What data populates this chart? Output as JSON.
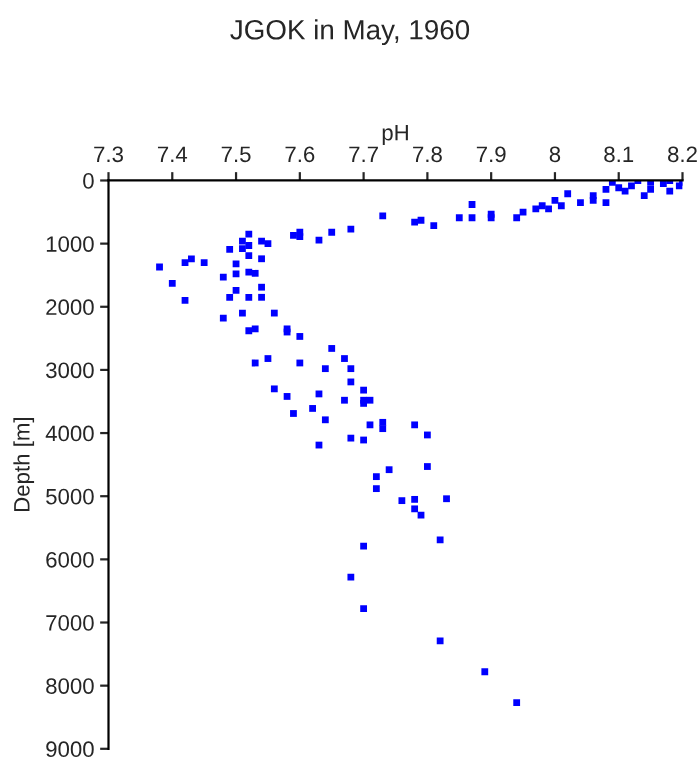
{
  "chart_data": {
    "type": "scatter",
    "title": "JGOK in May, 1960",
    "xlabel": "pH",
    "ylabel": "Depth [m]",
    "xlim": [
      7.3,
      8.2
    ],
    "xticks": [
      7.3,
      7.4,
      7.5,
      7.6,
      7.7,
      7.8,
      7.9,
      {
        "value": 8.0,
        "label": "8"
      },
      8.1,
      8.2
    ],
    "ylim": [
      9000,
      0
    ],
    "yticks": [
      0,
      1000,
      2000,
      3000,
      4000,
      5000,
      6000,
      7000,
      8000,
      9000
    ],
    "grid": false,
    "marker": "square",
    "legend": false,
    "series": [
      {
        "color": "#0000ff",
        "x": [
          8.2,
          8.195,
          8.18,
          8.17,
          8.18,
          8.15,
          8.15,
          8.14,
          8.13,
          8.12,
          8.11,
          8.1,
          8.09,
          8.08,
          8.08,
          8.06,
          8.06,
          8.04,
          8.02,
          8.01,
          8.0,
          7.99,
          7.98,
          7.97,
          7.95,
          7.94,
          7.9,
          7.9,
          7.87,
          7.87,
          7.85,
          7.81,
          7.79,
          7.78,
          7.73,
          7.68,
          7.65,
          7.63,
          7.6,
          7.6,
          7.59,
          7.55,
          7.54,
          7.52,
          7.52,
          7.51,
          7.51,
          7.52,
          7.49,
          7.5,
          7.54,
          7.52,
          7.5,
          7.48,
          7.5,
          7.49,
          7.52,
          7.54,
          7.54,
          7.51,
          7.48,
          7.56,
          7.53,
          7.45,
          7.43,
          7.42,
          7.38,
          7.4,
          7.42,
          7.52,
          7.53,
          7.58,
          7.58,
          7.6,
          7.65,
          7.67,
          7.68,
          7.64,
          7.6,
          7.55,
          7.53,
          7.68,
          7.7,
          7.56,
          7.58,
          7.59,
          7.62,
          7.63,
          7.64,
          7.67,
          7.7,
          7.71,
          7.7,
          7.71,
          7.73,
          7.73,
          7.78,
          7.8,
          7.63,
          7.68,
          7.7,
          7.74,
          7.8,
          7.72,
          7.72,
          7.76,
          7.78,
          7.78,
          7.79,
          7.83,
          7.82,
          7.7,
          7.68,
          7.7,
          7.82,
          7.89,
          7.94
        ],
        "values": [
          30,
          85,
          0,
          50,
          170,
          30,
          140,
          240,
          0,
          85,
          170,
          115,
          30,
          140,
          350,
          240,
          315,
          350,
          210,
          400,
          315,
          450,
          400,
          450,
          500,
          590,
          535,
          590,
          380,
          590,
          590,
          715,
          630,
          660,
          560,
          770,
          820,
          945,
          820,
          890,
          870,
          1000,
          960,
          850,
          1030,
          960,
          1080,
          1190,
          1090,
          1320,
          1240,
          1450,
          1480,
          1530,
          1740,
          1850,
          1850,
          1690,
          1850,
          2100,
          2180,
          2100,
          1470,
          1300,
          1240,
          1300,
          1370,
          1630,
          1900,
          2380,
          2350,
          2350,
          2400,
          2470,
          2660,
          2820,
          2980,
          2980,
          2890,
          2820,
          2890,
          3190,
          3320,
          3300,
          3420,
          3690,
          3610,
          3380,
          3790,
          3480,
          3480,
          3480,
          3530,
          3870,
          3830,
          3930,
          3870,
          4030,
          4190,
          4080,
          4110,
          4580,
          4530,
          4690,
          4880,
          5070,
          5050,
          5200,
          5300,
          5040,
          5690,
          5790,
          6280,
          6780,
          7290,
          7780,
          8270
        ]
      }
    ]
  }
}
